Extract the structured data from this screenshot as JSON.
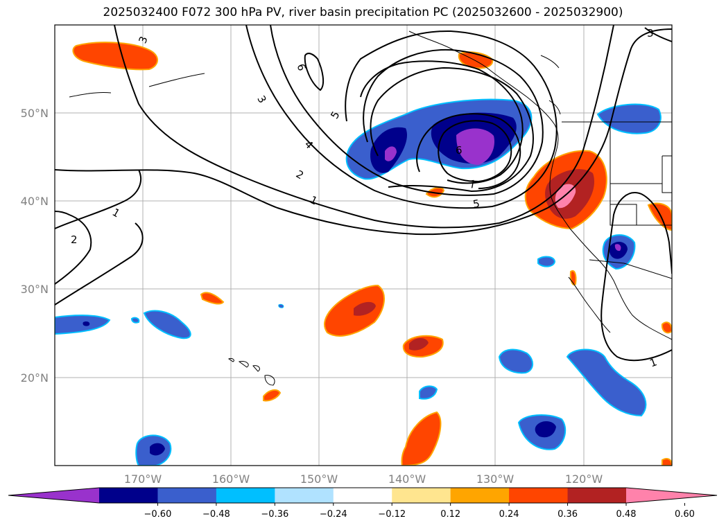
{
  "chart_data": {
    "type": "contour map",
    "title": "2025032400 F072 300 hPa PV, river basin precipitation PC (2025032600 - 2025032900)",
    "latitude_ticks": [
      "50°N",
      "40°N",
      "30°N",
      "20°N"
    ],
    "longitude_ticks": [
      "170°W",
      "160°W",
      "150°W",
      "140°W",
      "130°W",
      "120°W"
    ],
    "grid": true,
    "colorbar": {
      "orientation": "horizontal",
      "extend": "both",
      "ticks": [
        "−0.60",
        "−0.48",
        "−0.36",
        "−0.24",
        "−0.12",
        "0.12",
        "0.24",
        "0.36",
        "0.48",
        "0.60"
      ],
      "colors": [
        "#9932cc",
        "#00008b",
        "#3a5fcd",
        "#00bfff",
        "#b0e2ff",
        "#ffffff",
        "#ffe58f",
        "#ffa500",
        "#ff4500",
        "#b22222",
        "#ff82ab"
      ]
    },
    "pv_contour_labels": [
      "3",
      "6",
      "3",
      "5",
      "4",
      "2",
      "1",
      "1",
      "2",
      "6",
      "7",
      "5",
      "3",
      "1"
    ]
  }
}
